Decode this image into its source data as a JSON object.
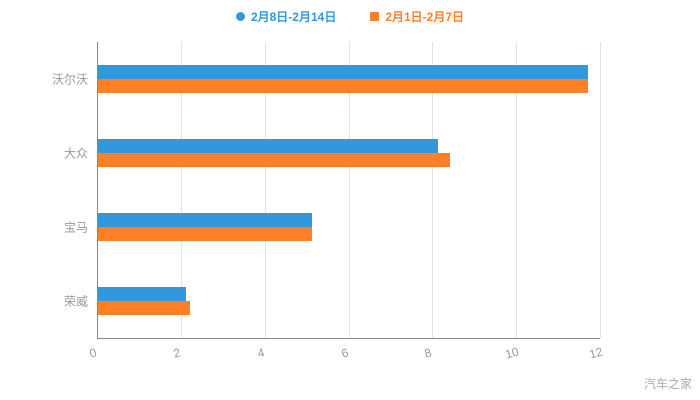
{
  "legend": {
    "items": [
      {
        "label": "2月8日-2月14日",
        "color": "#3398DB",
        "shape": "circle"
      },
      {
        "label": "2月1日-2月7日",
        "color": "#FF7F27",
        "shape": "square"
      }
    ]
  },
  "watermark": "汽车之家",
  "chart_data": {
    "type": "bar",
    "orientation": "horizontal",
    "title": "",
    "xlabel": "",
    "ylabel": "",
    "categories": [
      "沃尔沃",
      "大众",
      "宝马",
      "荣威"
    ],
    "series": [
      {
        "name": "2月8日-2月14日",
        "color": "#3398DB",
        "values": [
          11.7,
          8.1,
          5.1,
          2.1
        ]
      },
      {
        "name": "2月1日-2月7日",
        "color": "#FF7F27",
        "values": [
          11.7,
          8.4,
          5.1,
          2.2
        ]
      }
    ],
    "xlim": [
      0,
      12
    ],
    "xticks": [
      0,
      2,
      4,
      6,
      8,
      10,
      12
    ],
    "grid": true,
    "legend_position": "top",
    "axis_color": "#888",
    "grid_color": "#e3e3e3",
    "label_color": "#999999"
  }
}
